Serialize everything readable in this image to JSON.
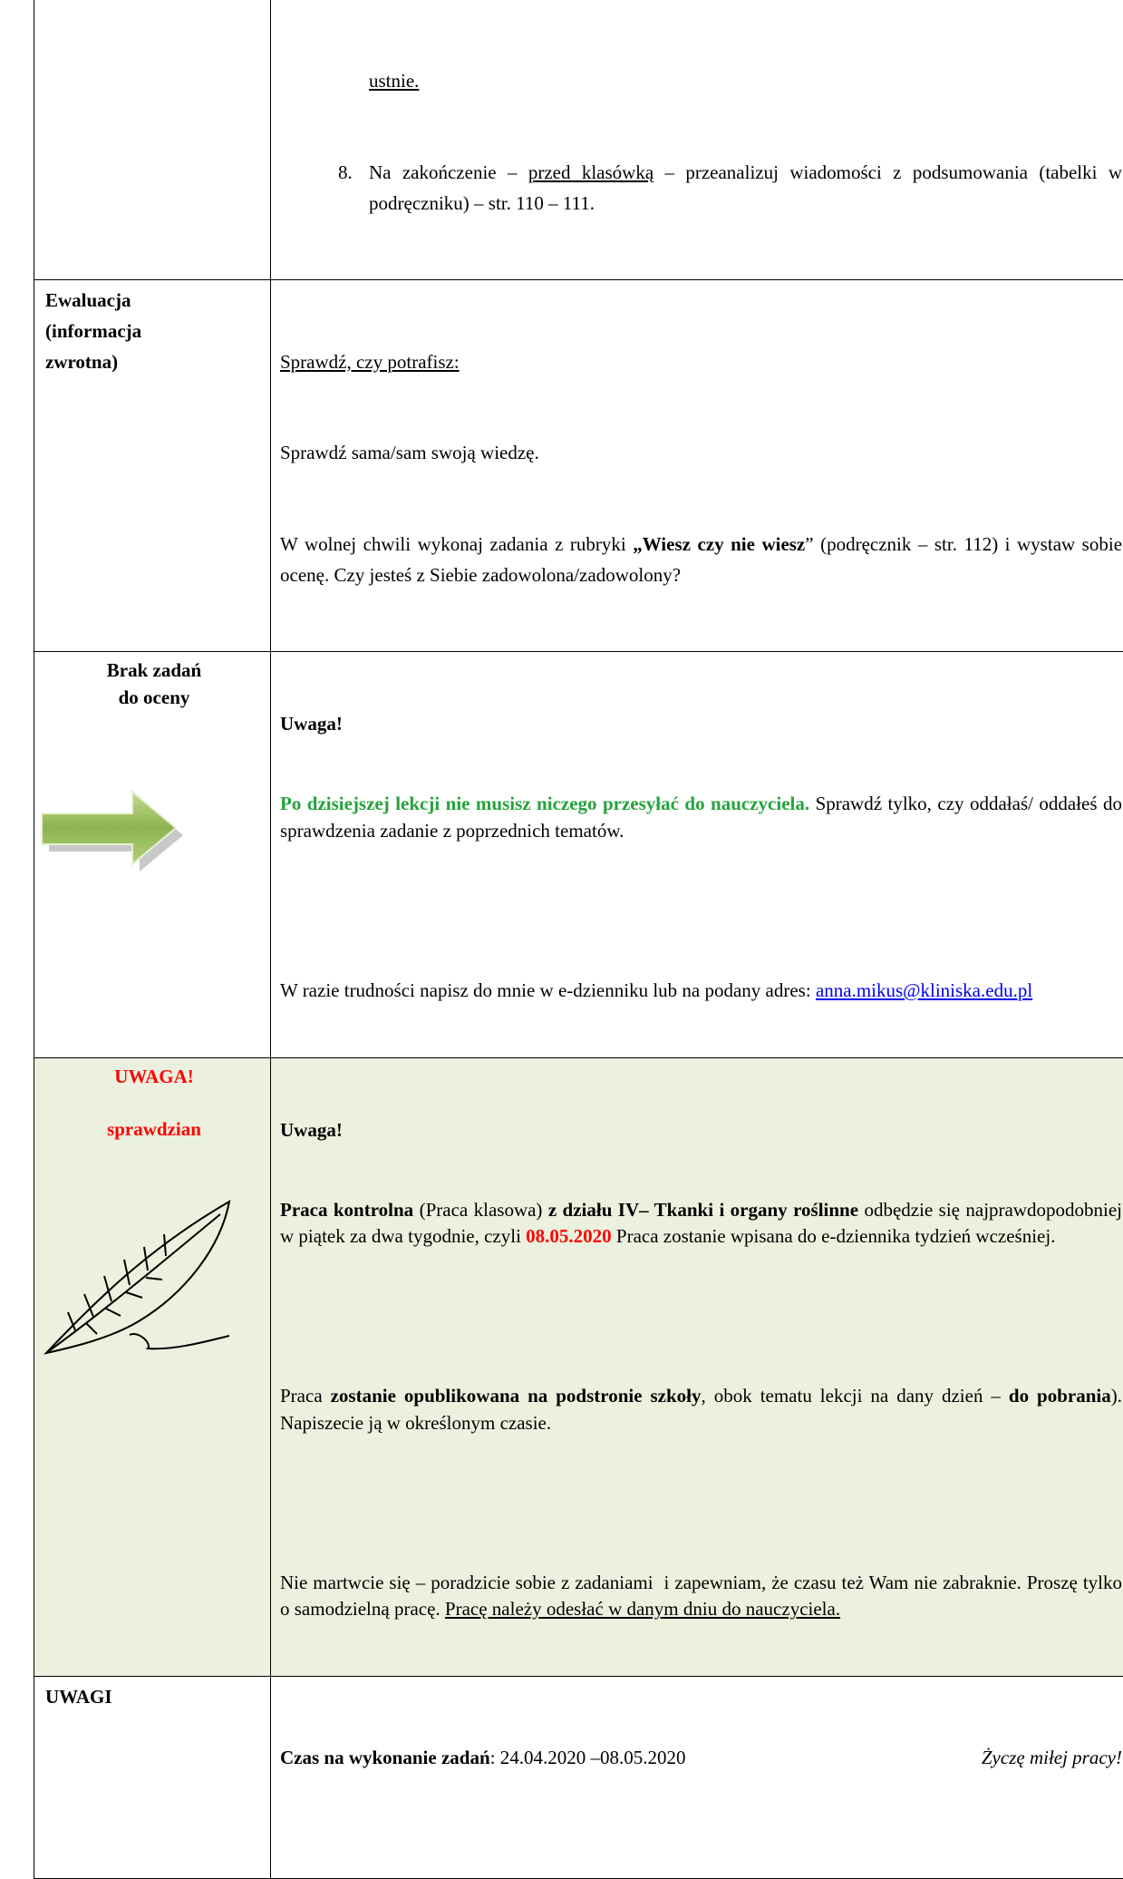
{
  "rows": [
    {
      "content": {
        "continued": "ustnie.",
        "item_number": "8.",
        "item_runs": [
          "Na zakończenie – ",
          "przed klasówką",
          " – przeanalizuj wiadomości z podsumowania (tabelki w podręczniku) – str. 110 – 111."
        ]
      }
    },
    {
      "label": [
        "Ewaluacja",
        "(informacja",
        "zwrotna)"
      ],
      "content": {
        "heading": "Sprawdź, czy potrafisz:",
        "line": "Sprawdź sama/sam swoją wiedzę.",
        "runs": [
          "W wolnej chwili wykonaj zadania z rubryki ",
          "„Wiesz czy nie wiesz",
          "” (podręcznik – str. 112) i wystaw sobie ocenę. Czy jesteś z Siebie zadowolona/zadowolony?"
        ]
      }
    },
    {
      "label": [
        "Brak zadań",
        "do oceny"
      ],
      "content": {
        "heading": "Uwaga!",
        "runs": [
          "Po dzisiejszej lekcji nie musisz niczego przesyłać do nauczyciela.",
          " Sprawdź tylko, czy oddałaś/ oddałeś do sprawdzenia zadanie z poprzednich tematów."
        ],
        "contact": "W razie trudności napisz do mnie w e-dzienniku lub na podany adres: ",
        "email": "anna.mikus@kliniska.edu.pl"
      }
    },
    {
      "label": [
        "UWAGA!",
        "sprawdzian"
      ],
      "content": {
        "heading": "Uwaga!",
        "paragraphs": [
          [
            "Praca kontrolna",
            " (Praca klasowa) ",
            "z działu IV– Tkanki i organy roślinne",
            " odbędzie się najprawdopodobniej w piątek za dwa tygodnie, czyli ",
            "08.05.2020",
            " Praca zostanie wpisana do e-dziennika tydzień wcześniej."
          ],
          [
            "Praca ",
            "zostanie opublikowana na podstronie szkoły",
            ", obok tematu lekcji na dany dzień – ",
            "do pobrania",
            "). Napiszecie ją w określonym czasie."
          ],
          [
            "Nie martwcie się – poradzicie sobie z zadaniami  i zapewniam, że czasu też Wam nie zabraknie. Proszę tylko o samodzielną pracę. ",
            "Pracę należy odesłać w danym dniu do nauczyciela."
          ]
        ]
      }
    },
    {
      "label": [
        "UWAGI"
      ],
      "content": {
        "runs": [
          "Czas na wykonanie zadań",
          ": 24.04.2020 –08.05.2020"
        ],
        "closing": "Życzę miłej pracy!"
      }
    }
  ]
}
